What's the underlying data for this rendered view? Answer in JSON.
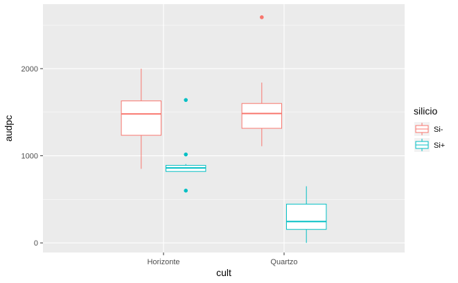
{
  "chart_data": {
    "type": "boxplot",
    "xlabel": "cult",
    "ylabel": "audpc",
    "categories": [
      "Horizonte",
      "Quartzo"
    ],
    "ylim": [
      -110,
      2740
    ],
    "y_ticks": [
      0,
      1000,
      2000
    ],
    "grid": true,
    "legend": {
      "title": "silicio",
      "placement": "right",
      "entries": [
        "Si-",
        "Si+"
      ]
    },
    "series": [
      {
        "name": "Si-",
        "color": "#F8766D",
        "boxes": [
          {
            "category": "Horizonte",
            "min": 850,
            "q1": 1235,
            "median": 1480,
            "q3": 1630,
            "max": 2000,
            "outliers": []
          },
          {
            "category": "Quartzo",
            "min": 1110,
            "q1": 1315,
            "median": 1485,
            "q3": 1600,
            "max": 1840,
            "outliers": [
              2590
            ]
          }
        ]
      },
      {
        "name": "Si+",
        "color": "#00BFC4",
        "boxes": [
          {
            "category": "Horizonte",
            "min": 820,
            "q1": 820,
            "median": 860,
            "q3": 890,
            "max": 905,
            "outliers": [
              1640,
              1015,
              600
            ]
          },
          {
            "category": "Quartzo",
            "min": 0,
            "q1": 155,
            "median": 245,
            "q3": 445,
            "max": 650,
            "outliers": []
          }
        ]
      }
    ]
  }
}
